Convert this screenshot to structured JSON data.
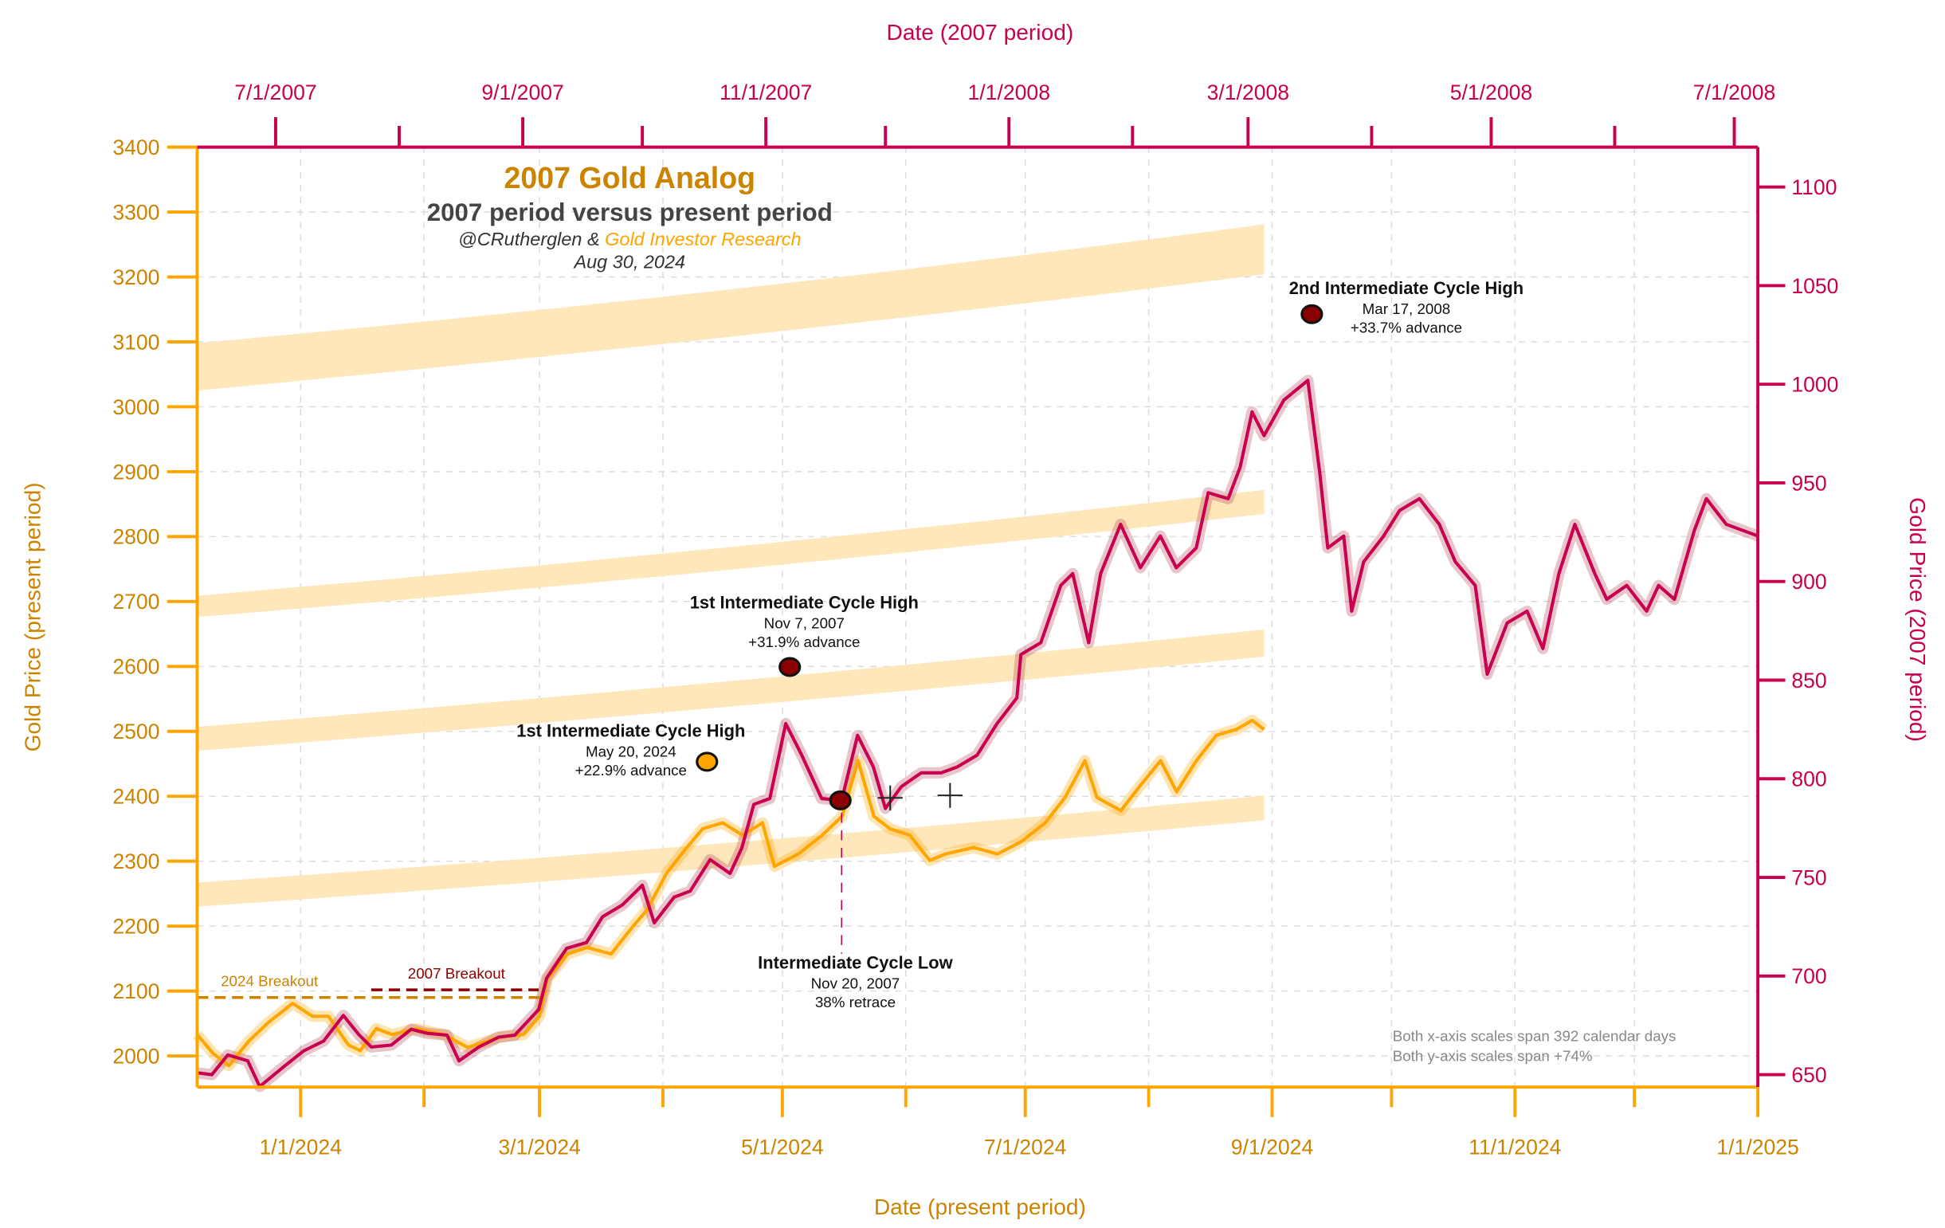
{
  "colors": {
    "present": "#FFA500",
    "present_dark": "#CC8400",
    "period2007": "#C8004F",
    "marker_dark": "#8B0000",
    "band": "#FFE4B5",
    "breakout2007": "#8B0000",
    "note": "#888888",
    "subtitle": "#444444"
  },
  "header": {
    "title": "2007 Gold Analog",
    "subtitle": "2007 period versus present period",
    "credit_author": "@CRutherglen &",
    "credit_org": "Gold Investor Research",
    "date": "Aug 30, 2024"
  },
  "notes": [
    "Both x-axis scales span 392 calendar days",
    "Both y-axis scales span +74%"
  ],
  "chart_data": {
    "type": "line",
    "grid": true,
    "x_bottom": {
      "label": "Date (present period)",
      "range": [
        "2023-12-06",
        "2025-01-01"
      ],
      "ticks": [
        "1/1/2024",
        "3/1/2024",
        "5/1/2024",
        "7/1/2024",
        "9/1/2024",
        "11/1/2024",
        "1/1/2025"
      ],
      "tick_dates": [
        "2024-01-01",
        "2024-03-01",
        "2024-05-01",
        "2024-07-01",
        "2024-09-01",
        "2024-11-01",
        "2025-01-01"
      ],
      "minor_dates": [
        "2024-02-01",
        "2024-04-01",
        "2024-06-01",
        "2024-08-01",
        "2024-10-01",
        "2024-12-01"
      ]
    },
    "x_top": {
      "label": "Date (2007 period)",
      "range": [
        "2007-06-11",
        "2008-07-07"
      ],
      "ticks": [
        "7/1/2007",
        "9/1/2007",
        "11/1/2007",
        "1/1/2008",
        "3/1/2008",
        "5/1/2008",
        "7/1/2008"
      ],
      "tick_dates": [
        "2007-07-01",
        "2007-09-01",
        "2007-11-01",
        "2008-01-01",
        "2008-03-01",
        "2008-05-01",
        "2008-07-01"
      ],
      "minor_dates": [
        "2007-08-01",
        "2007-10-01",
        "2007-12-01",
        "2008-02-01",
        "2008-04-01",
        "2008-06-01"
      ]
    },
    "y_left": {
      "label": "Gold Price (present period)",
      "range": [
        1952,
        3400
      ],
      "ticks": [
        2000,
        2100,
        2200,
        2300,
        2400,
        2500,
        2600,
        2700,
        2800,
        2900,
        3000,
        3100,
        3200,
        3300,
        3400
      ]
    },
    "y_right": {
      "label": "Gold Price (2007 period)",
      "range": [
        644,
        1120
      ],
      "ticks": [
        650,
        700,
        750,
        800,
        850,
        900,
        950,
        1000,
        1050,
        1100
      ]
    },
    "series": [
      {
        "axis": "bottom-left",
        "color": "#FFA500",
        "points": [
          [
            "2023-12-06",
            2033
          ],
          [
            "2023-12-10",
            2004
          ],
          [
            "2023-12-14",
            1985
          ],
          [
            "2023-12-19",
            2023
          ],
          [
            "2023-12-24",
            2052
          ],
          [
            "2023-12-30",
            2081
          ],
          [
            "2024-01-04",
            2061
          ],
          [
            "2024-01-08",
            2061
          ],
          [
            "2024-01-13",
            2017
          ],
          [
            "2024-01-16",
            2008
          ],
          [
            "2024-01-20",
            2042
          ],
          [
            "2024-01-24",
            2033
          ],
          [
            "2024-01-30",
            2042
          ],
          [
            "2024-02-06",
            2033
          ],
          [
            "2024-02-12",
            2013
          ],
          [
            "2024-02-20",
            2029
          ],
          [
            "2024-02-26",
            2033
          ],
          [
            "2024-03-01",
            2061
          ],
          [
            "2024-03-03",
            2119
          ],
          [
            "2024-03-08",
            2157
          ],
          [
            "2024-03-13",
            2167
          ],
          [
            "2024-03-19",
            2157
          ],
          [
            "2024-03-24",
            2196
          ],
          [
            "2024-03-28",
            2225
          ],
          [
            "2024-04-02",
            2282
          ],
          [
            "2024-04-07",
            2321
          ],
          [
            "2024-04-11",
            2350
          ],
          [
            "2024-04-16",
            2359
          ],
          [
            "2024-04-21",
            2340
          ],
          [
            "2024-04-26",
            2359
          ],
          [
            "2024-04-29",
            2292
          ],
          [
            "2024-05-05",
            2311
          ],
          [
            "2024-05-11",
            2340
          ],
          [
            "2024-05-16",
            2369
          ],
          [
            "2024-05-20",
            2455
          ],
          [
            "2024-05-24",
            2369
          ],
          [
            "2024-05-28",
            2350
          ],
          [
            "2024-06-02",
            2340
          ],
          [
            "2024-06-07",
            2301
          ],
          [
            "2024-06-11",
            2311
          ],
          [
            "2024-06-18",
            2321
          ],
          [
            "2024-06-24",
            2311
          ],
          [
            "2024-06-30",
            2330
          ],
          [
            "2024-07-06",
            2359
          ],
          [
            "2024-07-11",
            2398
          ],
          [
            "2024-07-16",
            2455
          ],
          [
            "2024-07-19",
            2398
          ],
          [
            "2024-07-25",
            2378
          ],
          [
            "2024-07-30",
            2417
          ],
          [
            "2024-08-04",
            2455
          ],
          [
            "2024-08-08",
            2407
          ],
          [
            "2024-08-13",
            2455
          ],
          [
            "2024-08-18",
            2494
          ],
          [
            "2024-08-23",
            2503
          ],
          [
            "2024-08-27",
            2517
          ],
          [
            "2024-08-30",
            2503
          ]
        ]
      },
      {
        "axis": "top-right",
        "color": "#C8004F",
        "points": [
          [
            "2007-06-11",
            651
          ],
          [
            "2007-06-15",
            650
          ],
          [
            "2007-06-19",
            660
          ],
          [
            "2007-06-24",
            657
          ],
          [
            "2007-06-27",
            644
          ],
          [
            "2007-07-03",
            654
          ],
          [
            "2007-07-08",
            662
          ],
          [
            "2007-07-13",
            667
          ],
          [
            "2007-07-18",
            680
          ],
          [
            "2007-07-22",
            670
          ],
          [
            "2007-07-25",
            664
          ],
          [
            "2007-07-30",
            665
          ],
          [
            "2007-08-04",
            673
          ],
          [
            "2007-08-08",
            671
          ],
          [
            "2007-08-13",
            670
          ],
          [
            "2007-08-16",
            657
          ],
          [
            "2007-08-21",
            664
          ],
          [
            "2007-08-26",
            669
          ],
          [
            "2007-08-30",
            670
          ],
          [
            "2007-09-05",
            683
          ],
          [
            "2007-09-07",
            699
          ],
          [
            "2007-09-12",
            714
          ],
          [
            "2007-09-17",
            717
          ],
          [
            "2007-09-21",
            730
          ],
          [
            "2007-09-26",
            736
          ],
          [
            "2007-10-01",
            746
          ],
          [
            "2007-10-04",
            727
          ],
          [
            "2007-10-09",
            740
          ],
          [
            "2007-10-13",
            743
          ],
          [
            "2007-10-18",
            759
          ],
          [
            "2007-10-23",
            752
          ],
          [
            "2007-10-26",
            765
          ],
          [
            "2007-10-29",
            787
          ],
          [
            "2007-11-02",
            790
          ],
          [
            "2007-11-06",
            828
          ],
          [
            "2007-11-10",
            812
          ],
          [
            "2007-11-15",
            790
          ],
          [
            "2007-11-20",
            789
          ],
          [
            "2007-11-24",
            822
          ],
          [
            "2007-11-28",
            806
          ],
          [
            "2007-12-01",
            785
          ],
          [
            "2007-12-05",
            796
          ],
          [
            "2007-12-10",
            803
          ],
          [
            "2007-12-15",
            803
          ],
          [
            "2007-12-19",
            806
          ],
          [
            "2007-12-24",
            812
          ],
          [
            "2007-12-29",
            828
          ],
          [
            "2008-01-03",
            841
          ],
          [
            "2008-01-04",
            863
          ],
          [
            "2008-01-09",
            869
          ],
          [
            "2008-01-14",
            898
          ],
          [
            "2008-01-17",
            904
          ],
          [
            "2008-01-21",
            869
          ],
          [
            "2008-01-24",
            904
          ],
          [
            "2008-01-29",
            929
          ],
          [
            "2008-02-03",
            907
          ],
          [
            "2008-02-08",
            923
          ],
          [
            "2008-02-12",
            907
          ],
          [
            "2008-02-17",
            917
          ],
          [
            "2008-02-20",
            945
          ],
          [
            "2008-02-25",
            942
          ],
          [
            "2008-02-28",
            958
          ],
          [
            "2008-03-02",
            986
          ],
          [
            "2008-03-05",
            974
          ],
          [
            "2008-03-10",
            992
          ],
          [
            "2008-03-16",
            1002
          ],
          [
            "2008-03-19",
            955
          ],
          [
            "2008-03-21",
            917
          ],
          [
            "2008-03-25",
            923
          ],
          [
            "2008-03-27",
            885
          ],
          [
            "2008-03-30",
            910
          ],
          [
            "2008-04-04",
            923
          ],
          [
            "2008-04-08",
            936
          ],
          [
            "2008-04-13",
            942
          ],
          [
            "2008-04-18",
            929
          ],
          [
            "2008-04-22",
            910
          ],
          [
            "2008-04-27",
            898
          ],
          [
            "2008-04-30",
            853
          ],
          [
            "2008-05-05",
            879
          ],
          [
            "2008-05-10",
            885
          ],
          [
            "2008-05-14",
            866
          ],
          [
            "2008-05-18",
            904
          ],
          [
            "2008-05-22",
            929
          ],
          [
            "2008-05-27",
            904
          ],
          [
            "2008-05-30",
            891
          ],
          [
            "2008-06-04",
            898
          ],
          [
            "2008-06-09",
            885
          ],
          [
            "2008-06-12",
            898
          ],
          [
            "2008-06-16",
            891
          ],
          [
            "2008-06-21",
            926
          ],
          [
            "2008-06-24",
            942
          ],
          [
            "2008-06-29",
            929
          ],
          [
            "2008-07-03",
            926
          ],
          [
            "2008-07-07",
            923
          ]
        ]
      }
    ],
    "channels": [
      {
        "dates": [
          "2023-12-06",
          "2024-04-22",
          "2024-08-30"
        ],
        "upper": [
          3098,
          3175,
          3281
        ],
        "lower": [
          3025,
          3104,
          3204
        ]
      },
      {
        "dates": [
          "2023-12-06",
          "2024-04-22",
          "2024-08-30"
        ],
        "upper": [
          2709,
          2780,
          2872
        ],
        "lower": [
          2676,
          2745,
          2835
        ]
      },
      {
        "dates": [
          "2023-12-06",
          "2024-04-22",
          "2024-08-30"
        ],
        "upper": [
          2507,
          2575,
          2657
        ],
        "lower": [
          2470,
          2536,
          2615
        ]
      },
      {
        "dates": [
          "2023-12-06",
          "2024-04-22",
          "2024-08-30"
        ],
        "upper": [
          2267,
          2325,
          2401
        ],
        "lower": [
          2230,
          2288,
          2363
        ]
      }
    ],
    "breakouts": [
      {
        "label": "2024 Breakout",
        "axis": "bottom-left",
        "value": 2090,
        "from": "2023-12-06",
        "to": "2024-03-01"
      },
      {
        "label": "2007 Breakout",
        "axis": "top-right",
        "value": 693,
        "from": "2007-07-25",
        "to": "2007-09-05"
      }
    ],
    "annotations": [
      {
        "title": "2nd Intermediate Cycle High",
        "date": "Mar 17, 2008",
        "detail": "+33.7% advance",
        "marker": "dark-red"
      },
      {
        "title": "1st Intermediate Cycle High",
        "date": "Nov 7, 2007",
        "detail": "+31.9% advance",
        "marker": "dark-red"
      },
      {
        "title": "1st Intermediate Cycle High",
        "date": "May 20, 2024",
        "detail": "+22.9% advance",
        "marker": "orange"
      },
      {
        "title": "Intermediate Cycle Low",
        "date": "Nov 20, 2007",
        "detail": "38% retrace",
        "marker": "dark-red"
      }
    ]
  }
}
